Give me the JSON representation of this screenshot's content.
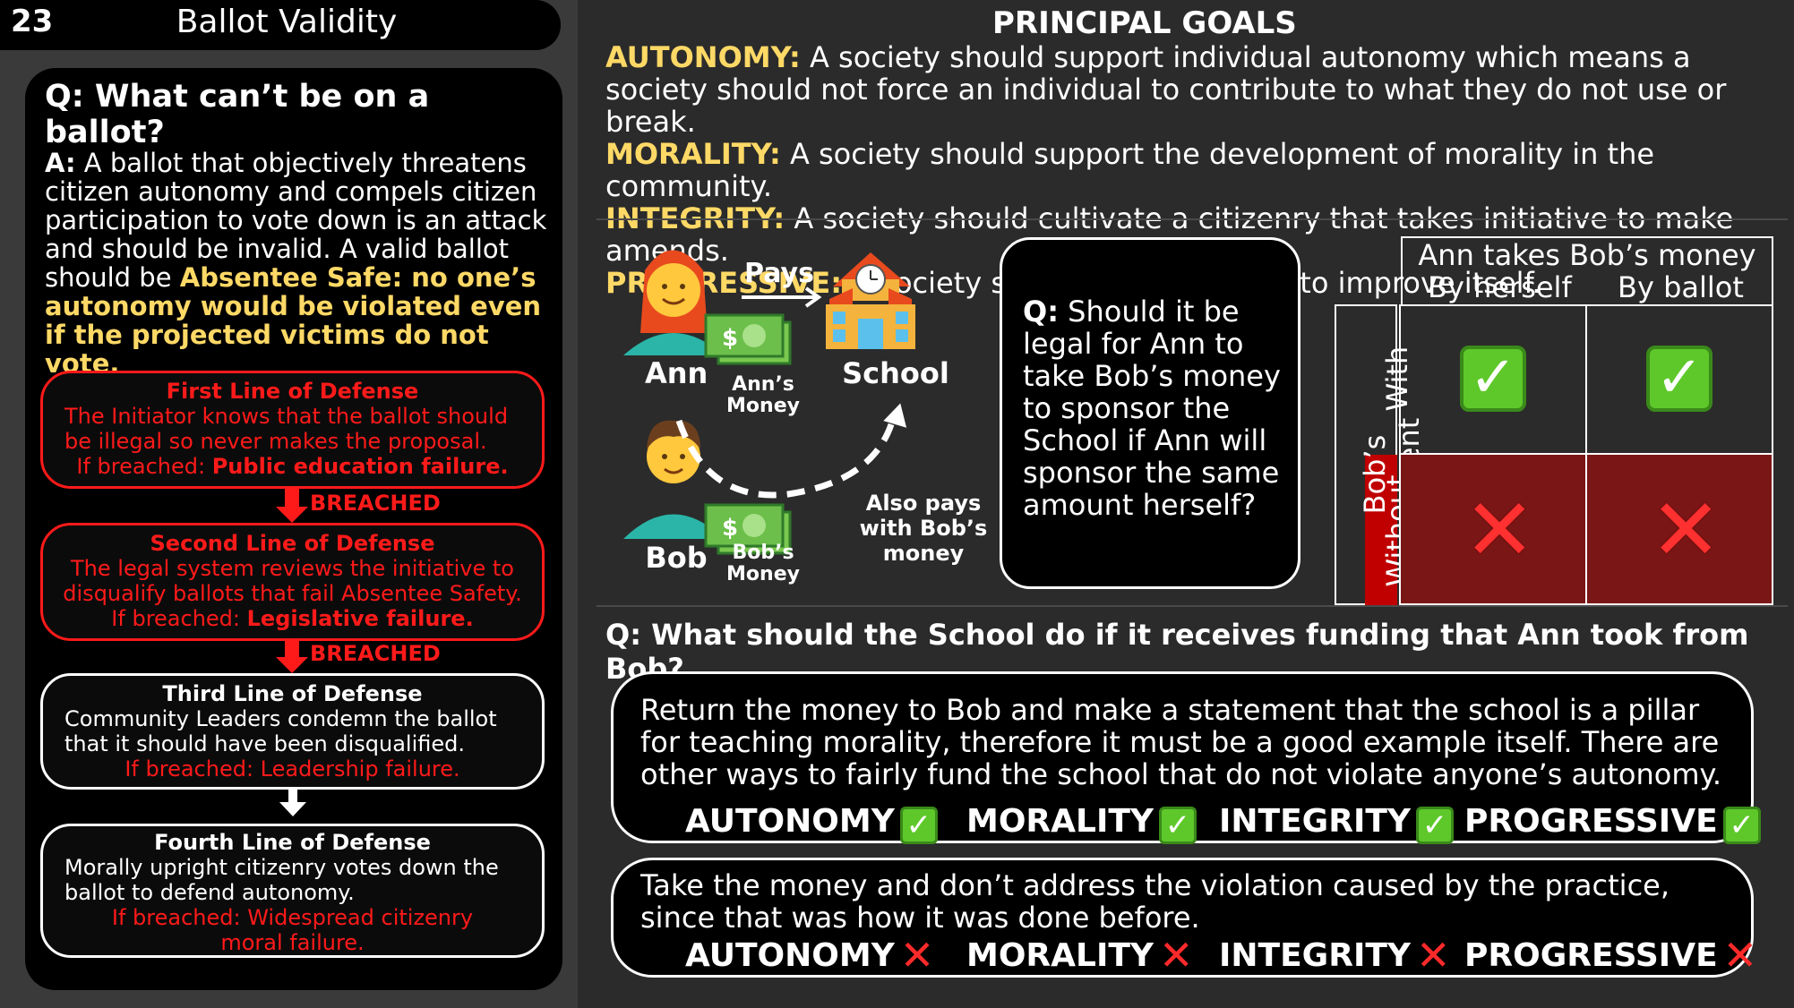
{
  "header": {
    "slide_number": "23",
    "title": "Ballot Validity"
  },
  "left": {
    "question": "Q: What can’t be on a ballot?",
    "answer_lead": "A:",
    "answer_text": " A ballot that objectively threatens citizen autonomy and compels citizen participation to vote down is an attack and should be invalid. A valid ballot should be ",
    "answer_highlight": "Absentee Safe: no one’s autonomy would be violated even if the projected victims do not vote.",
    "defenses": [
      {
        "title": "First Line of Defense",
        "body": "The Initiator knows that the ballot should be illegal so never makes the proposal.",
        "breach_prefix": "If breached: ",
        "breach": "Public education failure."
      },
      {
        "title": "Second Line of Defense",
        "body": "The legal system reviews the initiative to disqualify ballots that fail Absentee Safety.",
        "breach_prefix": "If breached: ",
        "breach": "Legislative failure."
      },
      {
        "title": "Third Line of Defense",
        "body": "Community Leaders condemn the ballot that it should have been disqualified.",
        "breach": "If breached: Leadership failure."
      },
      {
        "title": "Fourth Line of Defense",
        "body": "Morally upright citizenry votes down the ballot to defend autonomy.",
        "breach": "If breached: Widespread citizenry moral failure."
      }
    ],
    "breached_label": "BREACHED"
  },
  "goals": {
    "title": "PRINCIPAL GOALS",
    "items": [
      {
        "key": "AUTONOMY:",
        "text": " A society should support individual autonomy which means a society should not force an individual to contribute to what they do not use or break."
      },
      {
        "key": "MORALITY:",
        "text": " A society should support the development of morality in the community."
      },
      {
        "key": "INTEGRITY:",
        "text": " A society should cultivate a citizenry that takes initiative to make amends."
      },
      {
        "key": "PROGRESSIVE:",
        "text": " A society should take initiative to improve itself."
      }
    ]
  },
  "scenario": {
    "pays": "Pays",
    "ann": "Ann",
    "bob": "Bob",
    "school": "School",
    "ann_money": "Ann’s Money",
    "bob_money": "Bob’s Money",
    "also_pays": "Also pays with Bob’s money",
    "question": "Q: Should it be legal for Ann to take Bob’s money to sponsor the School if Ann will sponsor the same amount herself?"
  },
  "table": {
    "header": "Ann takes Bob’s money",
    "col1": "By herself",
    "col2": "By ballot",
    "row_group": "Bob’s consent",
    "row1": "With",
    "row2": "Without",
    "colors": {
      "without_bg": "#7a1616",
      "without_label_bg": "#c00000"
    }
  },
  "q2": "Q: What should the School do if it receives funding that Ann took from Bob?",
  "answers": [
    {
      "text": "Return the money to Bob and make a statement that the school is a pillar for teaching morality, therefore it must be a good example itself. There are other ways to fairly fund the school that do not violate anyone’s autonomy.",
      "goals": [
        "AUTONOMY",
        "MORALITY",
        "INTEGRITY",
        "PROGRESSIVE"
      ],
      "result": "check"
    },
    {
      "text": "Take the money and don’t address the violation caused by the practice, since that was how it was done before.",
      "goals": [
        "AUTONOMY",
        "MORALITY",
        "INTEGRITY",
        "PROGRESSIVE"
      ],
      "result": "cross"
    }
  ],
  "colors": {
    "accent": "#ffd966",
    "danger": "#ff1a1a",
    "check": "#5ec82a"
  }
}
